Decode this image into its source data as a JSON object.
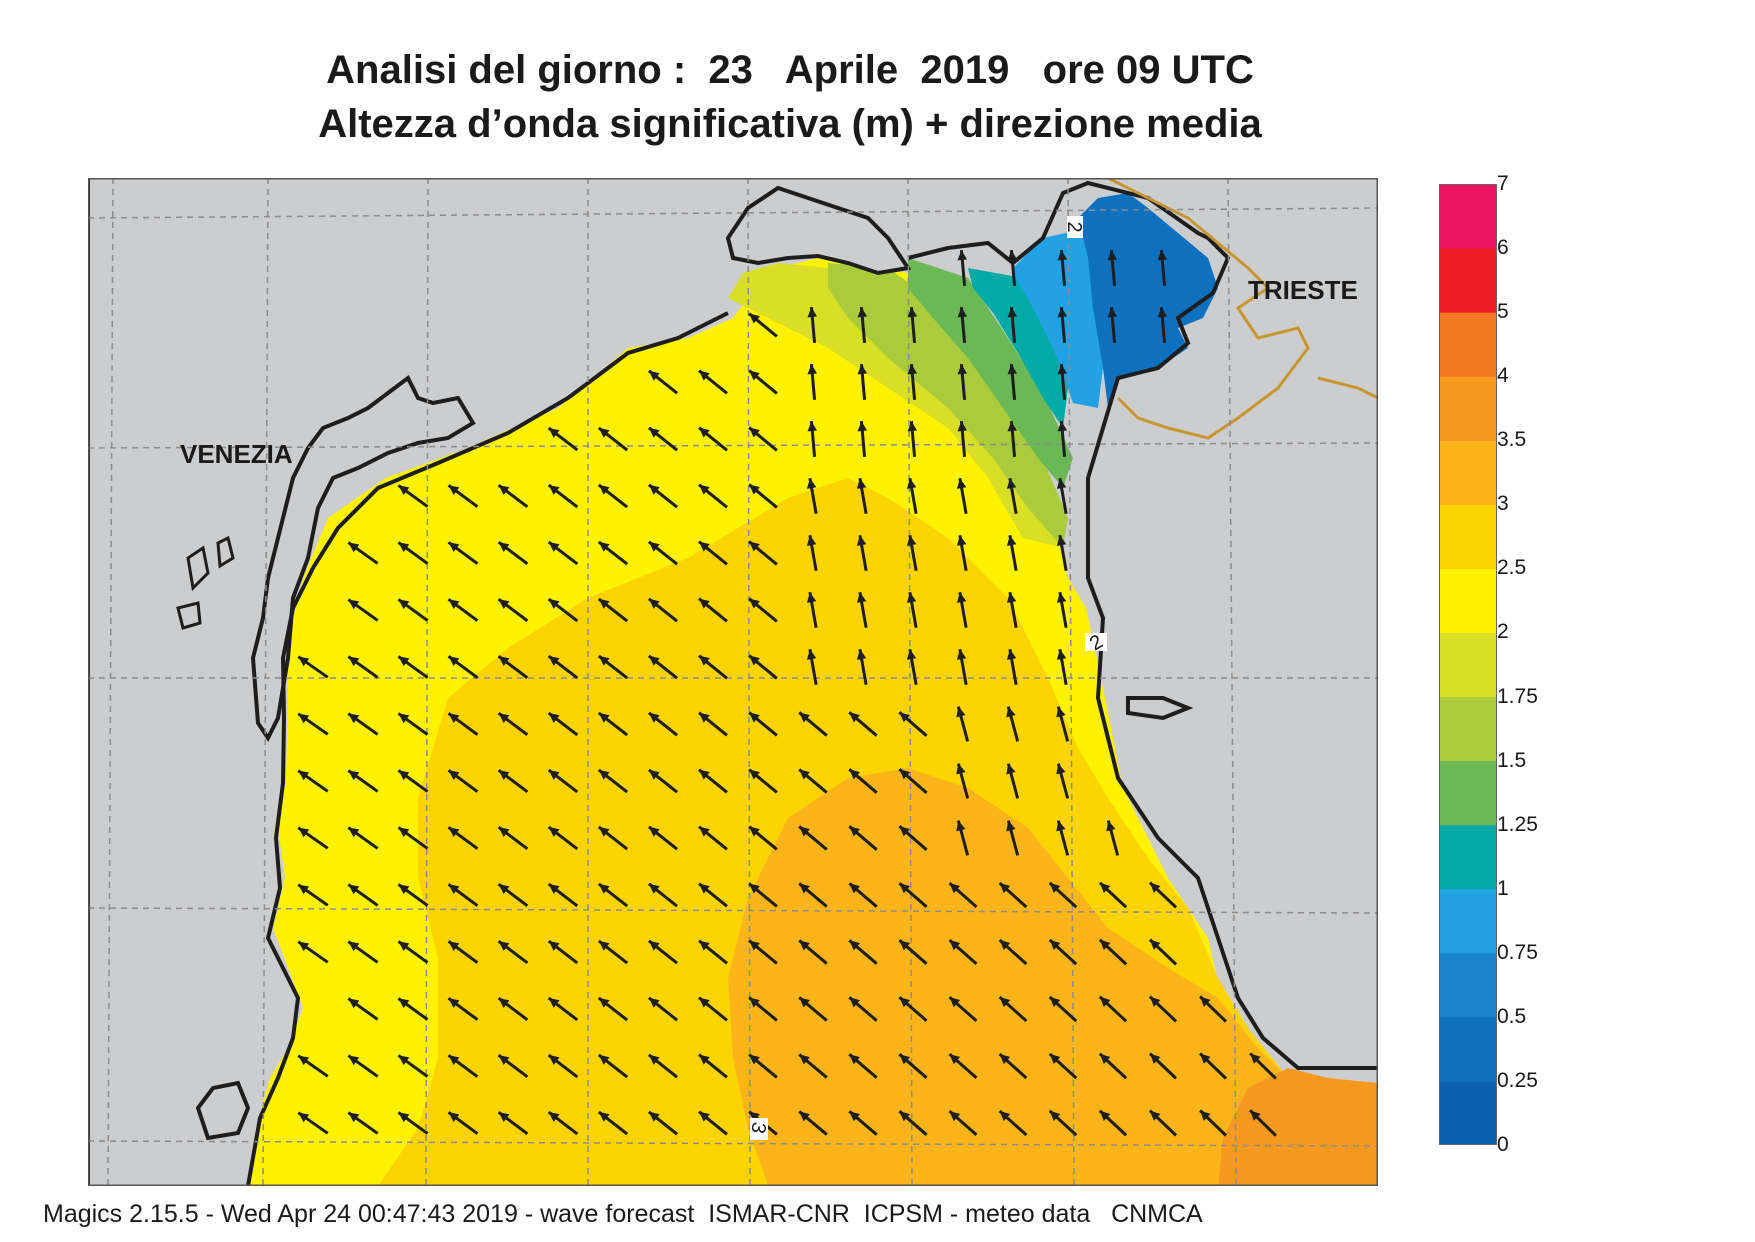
{
  "title_line1": "Analisi del giorno :  23   Aprile  2019   ore 09 UTC",
  "title_line2": "Altezza d’onda significativa (m) + direzione media",
  "cities": [
    "VENEZIA",
    "TRIESTE"
  ],
  "contour_labels": [
    "2",
    "2",
    "3"
  ],
  "legend": {
    "labels": [
      "0",
      "0.25",
      "0.5",
      "0.75",
      "1",
      "1.25",
      "1.5",
      "1.75",
      "2",
      "2.5",
      "3",
      "3.5",
      "4",
      "5",
      "6",
      "7"
    ],
    "colors": [
      "#0b61b1",
      "#0e71c0",
      "#1983cf",
      "#22a2e4",
      "#00aaa6",
      "#6ab955",
      "#a9cb3c",
      "#d9de26",
      "#fef200",
      "#fdd400",
      "#fbb51a",
      "#f7981f",
      "#f47920",
      "#ed1c24",
      "#ec145f"
    ]
  },
  "colors": {
    "land": "#cccdcf",
    "coast": "#1e1e1e",
    "grid": "#8c8c8c",
    "border": "#c8962e",
    "arrow": "#1e1e1e"
  },
  "wave_direction": "NW",
  "footer": "Magics 2.15.5 - Wed Apr 24 00:47:43 2019 - wave forecast  ISMAR-CNR  ICPSM - meteo data   CNMCA"
}
